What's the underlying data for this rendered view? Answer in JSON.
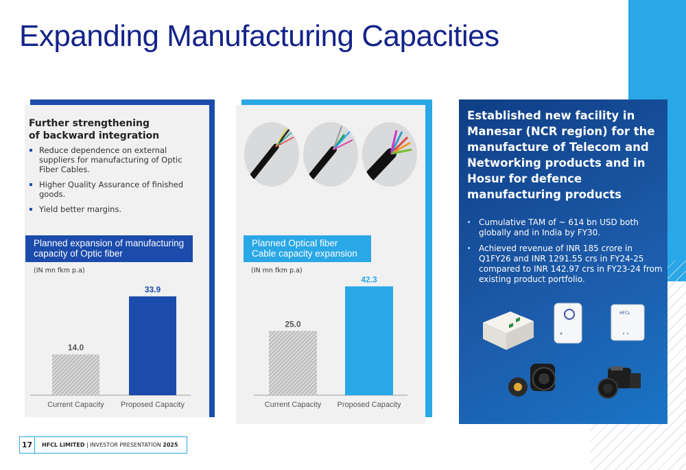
{
  "slide": {
    "title": "Expanding Manufacturing Capacities"
  },
  "panel1": {
    "heading_line1": "Further strengthening",
    "heading_line2": "of backward integration",
    "bullets": [
      "Reduce dependence on external suppliers for  manufacturing of Optic Fiber Cables.",
      "Higher Quality Assurance of finished goods.",
      "Yield better margins."
    ],
    "label_line1": "Planned expansion of manufacturing",
    "label_line2": "capacity of Optic fiber"
  },
  "panel2": {
    "label_line1": "Planned Optical fiber",
    "label_line2": "Cable capacity expansion"
  },
  "panel3": {
    "heading": "Established new facility in Manesar (NCR region) for the manufacture of Telecom and Networking products and in Hosur for defence manufacturing products",
    "bullets": [
      "Cumulative TAM of ~ 614 bn USD both globally and in India by FY30.",
      "Achieved revenue of INR 185 crore in Q1FY26 and INR 1291.55 crs in FY24-25 compared to INR 142.97 crs in FY23-24 from existing product portfolio."
    ]
  },
  "chart_data": [
    {
      "type": "bar",
      "ylabel": "(IN mn fkm p.a)",
      "categories": [
        "Current Capacity",
        "Proposed Capacity"
      ],
      "values": [
        14.0,
        33.9
      ],
      "value_labels": [
        "14.0",
        "33.9"
      ],
      "colors": [
        "hatched-gray",
        "#1b4bab"
      ],
      "ylim": [
        0,
        40
      ]
    },
    {
      "type": "bar",
      "ylabel": "(IN mn fkm p.a)",
      "categories": [
        "Current Capacity",
        "Proposed Capacity"
      ],
      "values": [
        25.0,
        42.3
      ],
      "value_labels": [
        "25.0",
        "42.3"
      ],
      "colors": [
        "hatched-gray",
        "#29a7e6"
      ],
      "ylim": [
        0,
        48
      ]
    }
  ],
  "footer": {
    "page": "17",
    "company": "HFCL LIMITED",
    "separator": "|",
    "doc": "INVESTOR PRESENTATION",
    "year": "2025"
  }
}
